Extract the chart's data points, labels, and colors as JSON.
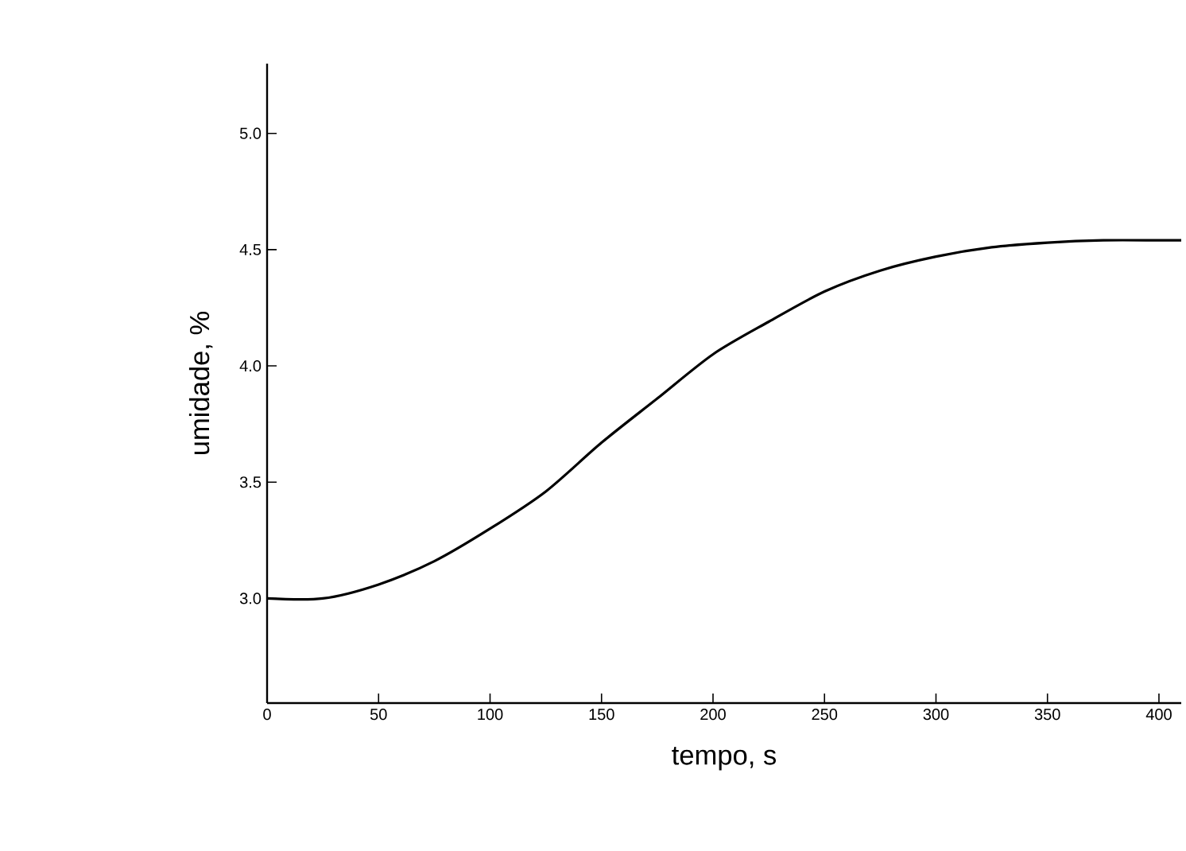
{
  "chart_data": {
    "type": "line",
    "xlabel": "tempo, s",
    "ylabel": "umidade, %",
    "x": [
      0,
      25,
      50,
      75,
      100,
      125,
      150,
      175,
      200,
      225,
      250,
      275,
      300,
      325,
      350,
      375,
      400,
      410
    ],
    "series": [
      {
        "color": "#000000",
        "values": [
          3.0,
          3.0,
          3.06,
          3.16,
          3.3,
          3.46,
          3.67,
          3.86,
          4.05,
          4.19,
          4.32,
          4.41,
          4.47,
          4.51,
          4.53,
          4.54,
          4.54,
          4.54
        ]
      }
    ],
    "xlim": [
      0,
      410
    ],
    "ylim": [
      2.55,
      5.3
    ],
    "xticks": [
      0,
      50,
      100,
      150,
      200,
      250,
      300,
      350,
      400
    ],
    "yticks": [
      {
        "value": 3.0,
        "label": "3.0"
      },
      {
        "value": 3.5,
        "label": "3.5"
      },
      {
        "value": 4.0,
        "label": "4.0"
      },
      {
        "value": 4.5,
        "label": "4.5"
      },
      {
        "value": 5.0,
        "label": "5.0"
      }
    ],
    "grid": false,
    "marker": "none",
    "line_style": "solid"
  }
}
